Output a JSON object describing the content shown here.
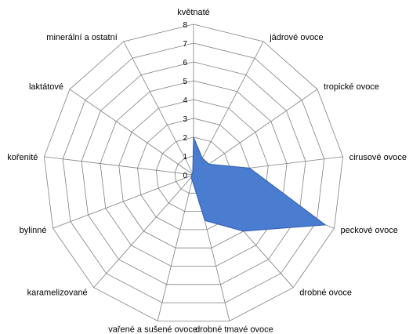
{
  "chart_data": {
    "type": "radar",
    "categories": [
      "květnaté",
      "jádrové ovoce",
      "tropické ovoce",
      "cirusové ovoce",
      "peckové ovoce",
      "drobné ovoce",
      "drobné tmavé ovoce",
      "vařené a sušené ovoce",
      "karamelizované",
      "bylinné",
      "kořenité",
      "laktátové",
      "minerální a ostatní"
    ],
    "series": [
      {
        "values": [
          2,
          1,
          1,
          3,
          7.5,
          4,
          2.5,
          0.3,
          0.2,
          0.1,
          0.1,
          0.1,
          0.1
        ],
        "color": "#4a7ccf"
      }
    ],
    "ticks": [
      "0",
      "1",
      "2",
      "3",
      "4",
      "5",
      "6",
      "7",
      "8"
    ],
    "rlim": [
      0,
      8
    ],
    "grid": true,
    "legend": "none"
  }
}
